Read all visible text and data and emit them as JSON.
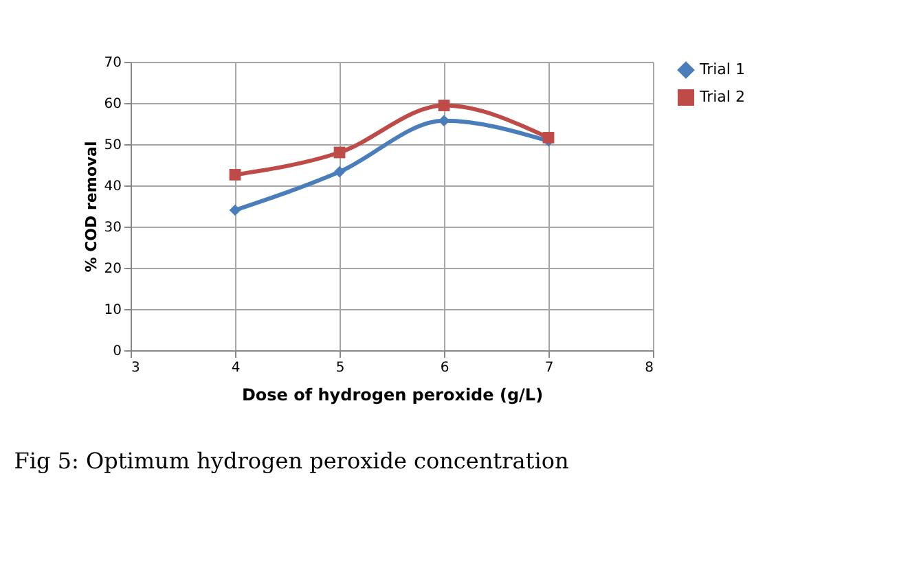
{
  "chart_data": {
    "type": "line",
    "xlabel": "Dose of hydrogen peroxide (g/L)",
    "ylabel": "% COD removal",
    "x": [
      4,
      5,
      6,
      7
    ],
    "series": [
      {
        "name": "Trial 1",
        "color": "#4a7ebb",
        "values": [
          34,
          43.3,
          55.7,
          50.8
        ],
        "marker": "diamond"
      },
      {
        "name": "Trial 2",
        "color": "#be4b48",
        "values": [
          42.6,
          48,
          59.4,
          51.6
        ],
        "marker": "square"
      }
    ],
    "xlim": [
      3,
      8
    ],
    "xticks": [
      3,
      4,
      5,
      6,
      7,
      8
    ],
    "ylim": [
      0,
      70
    ],
    "yticks": [
      0,
      10,
      20,
      30,
      40,
      50,
      60,
      70
    ],
    "grid": true,
    "legend": "right",
    "annotations": [
      "Fig 5: Optimum hydrogen peroxide concentration"
    ]
  }
}
